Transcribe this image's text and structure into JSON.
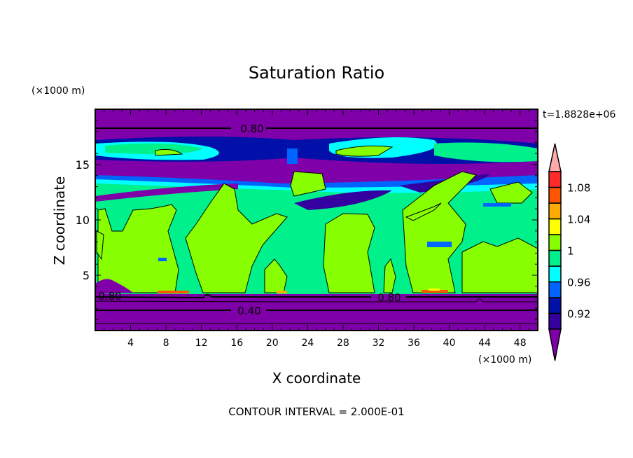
{
  "chart_data": {
    "type": "heatmap",
    "title": "Saturation Ratio",
    "xlabel": "X coordinate",
    "ylabel": "Z coordinate",
    "x_units": "(×1000 m)",
    "y_units": "(×1000 m)",
    "time_label": "t=1.8828e+06",
    "footer": "CONTOUR INTERVAL = 2.000E-01",
    "xlim": [
      0,
      50
    ],
    "ylim": [
      0,
      20
    ],
    "x_ticks": [
      4,
      8,
      12,
      16,
      20,
      24,
      28,
      32,
      36,
      40,
      44,
      48
    ],
    "y_ticks": [
      5,
      10,
      15
    ],
    "contour_labels": [
      "0.80",
      "0.80",
      "0.80",
      "0.40"
    ],
    "colorbar": {
      "levels": [
        0.9,
        0.92,
        0.94,
        0.96,
        0.98,
        1.0,
        1.02,
        1.04,
        1.06,
        1.08,
        1.1
      ],
      "tick_labels": [
        {
          "value": 0.92,
          "label": "0.92"
        },
        {
          "value": 0.96,
          "label": "0.96"
        },
        {
          "value": 1.0,
          "label": "1"
        },
        {
          "value": 1.04,
          "label": "1.04"
        },
        {
          "value": 1.08,
          "label": "1.08"
        }
      ],
      "colors": [
        "#3400a0",
        "#0010a8",
        "#0064ff",
        "#00ffff",
        "#00f08c",
        "#88ff00",
        "#ffff00",
        "#ffaa00",
        "#ff5500",
        "#ff2a2a"
      ],
      "under_color": "#7f00a8",
      "over_color": "#ffaaaa"
    }
  }
}
